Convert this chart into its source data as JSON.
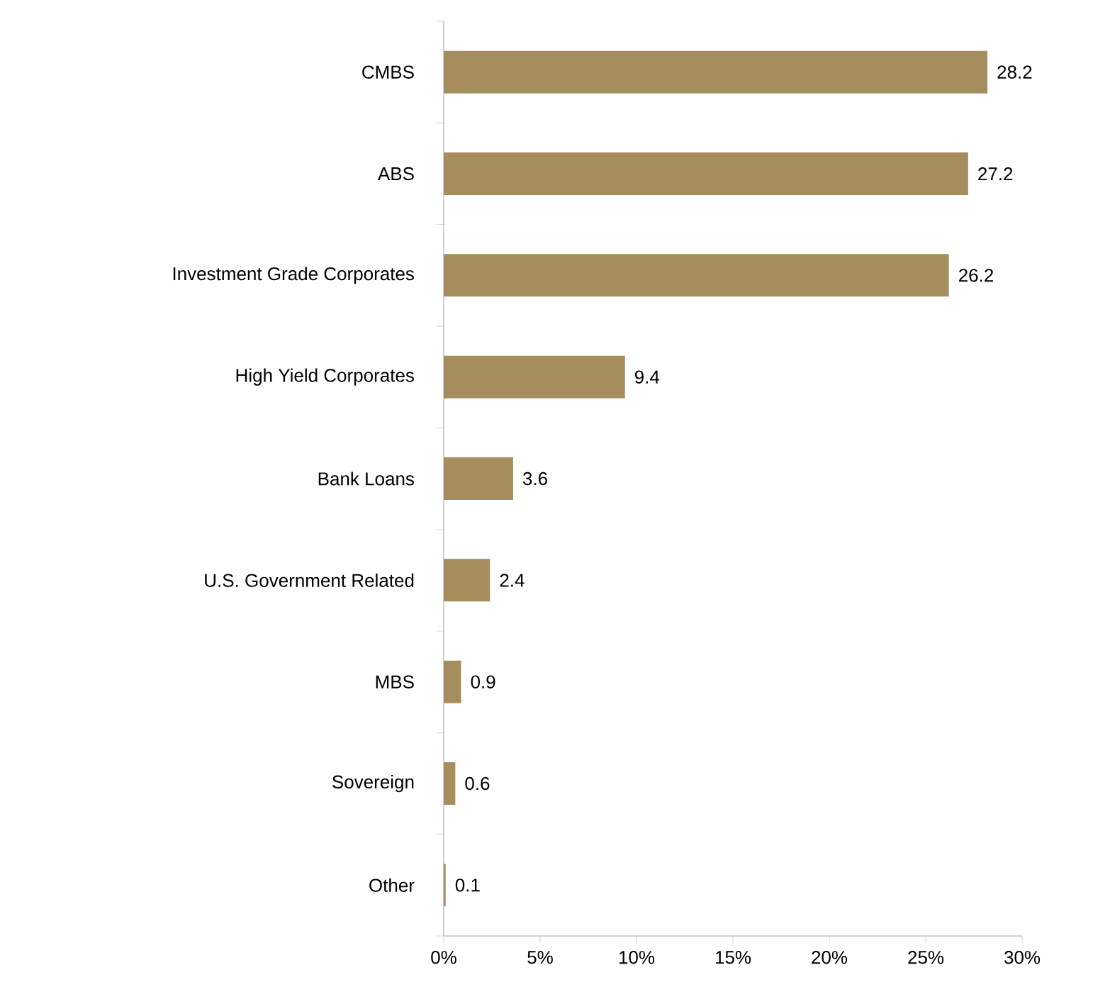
{
  "chart_data": {
    "type": "bar",
    "orientation": "horizontal",
    "categories": [
      "CMBS",
      "ABS",
      "Investment Grade Corporates",
      "High Yield Corporates",
      "Bank Loans",
      "U.S. Government Related",
      "MBS",
      "Sovereign",
      "Other"
    ],
    "values": [
      28.2,
      27.2,
      26.2,
      9.4,
      3.6,
      2.4,
      0.9,
      0.6,
      0.1
    ],
    "color": "#a58d5d",
    "xlim": [
      0,
      30
    ],
    "xticks": [
      {
        "value": 0,
        "label": "0%"
      },
      {
        "value": 5,
        "label": "5%"
      },
      {
        "value": 10,
        "label": "10%"
      },
      {
        "value": 15,
        "label": "15%"
      },
      {
        "value": 20,
        "label": "20%"
      },
      {
        "value": 25,
        "label": "25%"
      },
      {
        "value": 30,
        "label": "30%"
      }
    ],
    "data_labels": true
  }
}
